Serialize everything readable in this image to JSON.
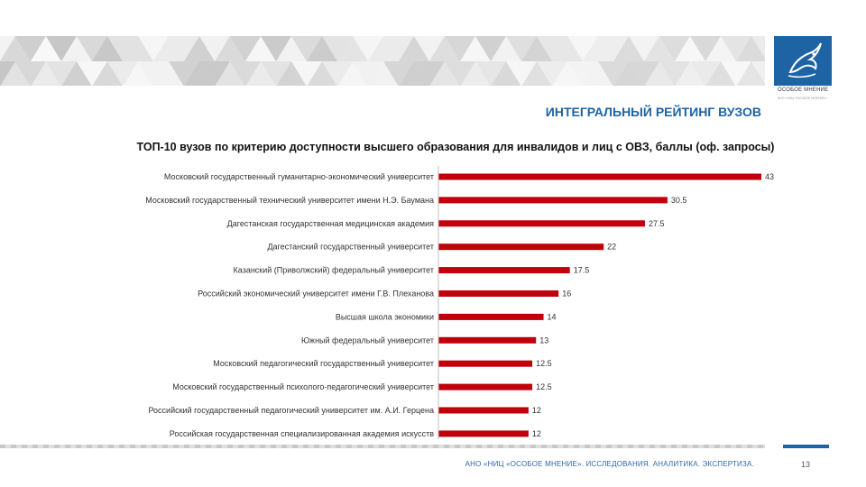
{
  "header": {
    "title": "ИНТЕГРАЛЬНЫЙ РЕЙТИНГ ВУЗОВ",
    "logo_text": "ОСОБОЕ МНЕНИЕ",
    "logo_subtext": "АНО «НИЦ «ОСОБОЕ МНЕНИЕ»"
  },
  "chart_data": {
    "type": "bar",
    "orientation": "horizontal",
    "title": "ТОП-10 вузов по критерию доступности высшего образования для инвалидов и лиц с ОВЗ, баллы (оф. запросы)",
    "xlabel": "",
    "ylabel": "",
    "xlim": [
      0,
      45
    ],
    "color": "#c0000b",
    "categories": [
      "Московский государственный гуманитарно-экономический университет",
      "Московский государственный технический университет имени Н.Э. Баумана",
      "Дагестанская государственная медицинская академия",
      "Дагестанский государственный университет",
      "Казанский (Приволжский) федеральный университет",
      "Российский экономический университет имени Г.В. Плеханова",
      "Высшая школа экономики",
      "Южный федеральный университет",
      "Московский педагогический государственный университет",
      "Московский государственный психолого-педагогический университет",
      "Российский государственный педагогический университет им. А.И. Герцена",
      "Российская государственная специализированная академия искусств"
    ],
    "values": [
      43,
      30.5,
      27.5,
      22,
      17.5,
      16,
      14,
      13,
      12.5,
      12.5,
      12,
      12
    ]
  },
  "footer": {
    "text": "АНО «НИЦ «ОСОБОЕ МНЕНИЕ». ИССЛЕДОВАНИЯ. АНАЛИТИКА. ЭКСПЕРТИЗА.",
    "page_number": "13"
  }
}
